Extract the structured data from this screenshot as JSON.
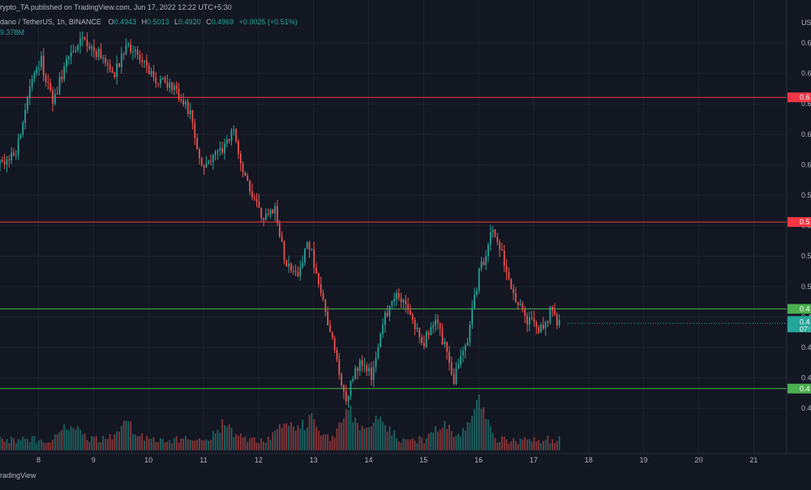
{
  "header": {
    "published": "rypto_TA published on TradingView.com, Jun 17, 2022 12:22 UTC+5:30",
    "symbol": "dano / TetherUS, 1h, BINANCE",
    "open_label": "O",
    "open": "0.4943",
    "high_label": "H",
    "high": "0.5013",
    "low_label": "L",
    "low": "0.4920",
    "close_label": "C",
    "close": "0.4969",
    "change": "+0.0025 (+0.51%)",
    "volume": "9.378M"
  },
  "footer": {
    "brand": "radingView"
  },
  "colors": {
    "background": "#131722",
    "up": "#26a69a",
    "down": "#ef5350",
    "resistance": "#f23645",
    "support": "#4caf50",
    "grid": "#1e222d"
  },
  "chart_data": {
    "type": "candlestick",
    "x_range": [
      7.3,
      21.6
    ],
    "x_ticks": [
      {
        "value": 8,
        "label": "8"
      },
      {
        "value": 9,
        "label": "9"
      },
      {
        "value": 10,
        "label": "10"
      },
      {
        "value": 11,
        "label": "11"
      },
      {
        "value": 12,
        "label": "12"
      },
      {
        "value": 13,
        "label": "13"
      },
      {
        "value": 14,
        "label": "14"
      },
      {
        "value": 15,
        "label": "15"
      },
      {
        "value": 16,
        "label": "16"
      },
      {
        "value": 17,
        "label": "17"
      },
      {
        "value": 18,
        "label": "18"
      },
      {
        "value": 19,
        "label": "19"
      },
      {
        "value": 20,
        "label": "20"
      },
      {
        "value": 21,
        "label": "21"
      }
    ],
    "y_axis": {
      "unit_label": "USD",
      "tick_labels": [
        "0.6",
        "0.6",
        "0.6",
        "0.6",
        "0.6",
        "0.5",
        "0.5",
        "0.5",
        "0.5",
        "0.4",
        "0.4",
        "0.4",
        "0.4"
      ],
      "price_range": [
        0.434,
        0.648
      ]
    },
    "horizontal_lines": [
      {
        "name": "resistance-upper",
        "price": 0.6075,
        "label": "0.6",
        "color": "#f23645"
      },
      {
        "name": "resistance-lower",
        "price": 0.5465,
        "label": "0.5",
        "color": "#f23645"
      },
      {
        "name": "support-upper",
        "price": 0.504,
        "label": "0.4",
        "color": "#4caf50"
      },
      {
        "name": "support-lower",
        "price": 0.465,
        "label": "0.4",
        "color": "#4caf50"
      }
    ],
    "current_price": {
      "price": 0.4969,
      "label": "0.4",
      "countdown": "07:",
      "color": "#26a69a"
    },
    "waypoints": [
      [
        7.3,
        0.575
      ],
      [
        7.6,
        0.582
      ],
      [
        7.85,
        0.612
      ],
      [
        8.05,
        0.625
      ],
      [
        8.25,
        0.605
      ],
      [
        8.55,
        0.628
      ],
      [
        8.8,
        0.638
      ],
      [
        9.1,
        0.628
      ],
      [
        9.4,
        0.62
      ],
      [
        9.6,
        0.632
      ],
      [
        9.9,
        0.625
      ],
      [
        10.1,
        0.618
      ],
      [
        10.5,
        0.61
      ],
      [
        10.75,
        0.6
      ],
      [
        10.95,
        0.575
      ],
      [
        11.25,
        0.58
      ],
      [
        11.55,
        0.59
      ],
      [
        11.85,
        0.56
      ],
      [
        12.1,
        0.548
      ],
      [
        12.3,
        0.552
      ],
      [
        12.5,
        0.525
      ],
      [
        12.7,
        0.52
      ],
      [
        12.9,
        0.538
      ],
      [
        13.15,
        0.51
      ],
      [
        13.4,
        0.48
      ],
      [
        13.6,
        0.46
      ],
      [
        13.85,
        0.48
      ],
      [
        14.05,
        0.47
      ],
      [
        14.3,
        0.5
      ],
      [
        14.5,
        0.512
      ],
      [
        14.75,
        0.5
      ],
      [
        15.0,
        0.488
      ],
      [
        15.25,
        0.498
      ],
      [
        15.55,
        0.47
      ],
      [
        15.8,
        0.49
      ],
      [
        16.0,
        0.52
      ],
      [
        16.25,
        0.542
      ],
      [
        16.45,
        0.528
      ],
      [
        16.65,
        0.508
      ],
      [
        16.85,
        0.5
      ],
      [
        17.1,
        0.492
      ],
      [
        17.3,
        0.502
      ],
      [
        17.47,
        0.497
      ]
    ],
    "volume_peaks": [
      {
        "x": 8.6,
        "size": 0.6
      },
      {
        "x": 9.6,
        "size": 0.55
      },
      {
        "x": 11.4,
        "size": 0.55
      },
      {
        "x": 12.5,
        "size": 0.6
      },
      {
        "x": 12.95,
        "size": 0.75
      },
      {
        "x": 13.65,
        "size": 1.1
      },
      {
        "x": 14.2,
        "size": 0.9
      },
      {
        "x": 15.35,
        "size": 0.6
      },
      {
        "x": 16.0,
        "size": 1.3
      }
    ]
  }
}
